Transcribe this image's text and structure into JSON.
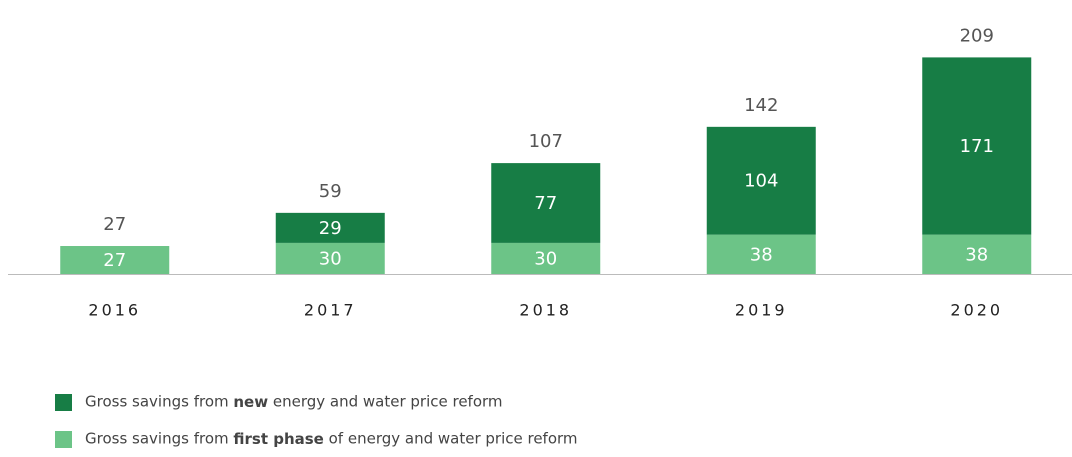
{
  "chart_data": {
    "type": "stacked_bar",
    "categories": [
      "2016",
      "2017",
      "2018",
      "2019",
      "2020"
    ],
    "series": [
      {
        "name": "Gross savings from new energy and water price reform",
        "emphasis": "new",
        "color": "#177d45",
        "values": [
          null,
          29,
          77,
          104,
          171
        ]
      },
      {
        "name": "Gross savings from first phase of energy and water price reform",
        "emphasis": "first phase",
        "color": "#6cc487",
        "values": [
          27,
          30,
          30,
          38,
          38
        ]
      }
    ],
    "totals": [
      27,
      59,
      107,
      142,
      209
    ],
    "ylim": [
      0,
      220
    ]
  }
}
